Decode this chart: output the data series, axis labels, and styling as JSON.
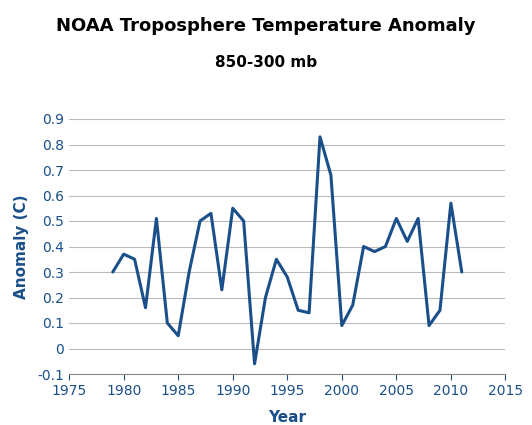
{
  "title": "NOAA Troposphere Temperature Anomaly",
  "subtitle": "850-300 mb",
  "xlabel": "Year",
  "ylabel": "Anomaly (C)",
  "xlim": [
    1975,
    2015
  ],
  "ylim": [
    -0.1,
    0.9
  ],
  "yticks": [
    -0.1,
    0.0,
    0.1,
    0.2,
    0.3,
    0.4,
    0.5,
    0.6,
    0.7,
    0.8,
    0.9
  ],
  "xticks": [
    1975,
    1980,
    1985,
    1990,
    1995,
    2000,
    2005,
    2010,
    2015
  ],
  "line_color": "#1a4f8a",
  "line_width": 2.2,
  "background_color": "#ffffff",
  "grid_color": "#bbbbbb",
  "label_color": "#1a4f8a",
  "tick_color": "#1a4f8a",
  "years": [
    1979,
    1980,
    1981,
    1982,
    1983,
    1984,
    1985,
    1986,
    1987,
    1988,
    1989,
    1990,
    1991,
    1992,
    1993,
    1994,
    1995,
    1996,
    1997,
    1998,
    1999,
    2000,
    2001,
    2002,
    2003,
    2004,
    2005,
    2006,
    2007,
    2008,
    2009,
    2010,
    2011
  ],
  "values": [
    0.3,
    0.37,
    0.35,
    0.16,
    0.51,
    0.1,
    0.05,
    0.3,
    0.5,
    0.53,
    0.23,
    0.55,
    0.5,
    -0.06,
    0.2,
    0.35,
    0.28,
    0.15,
    0.14,
    0.83,
    0.68,
    0.09,
    0.17,
    0.4,
    0.38,
    0.4,
    0.51,
    0.42,
    0.51,
    0.09,
    0.15,
    0.57,
    0.3
  ],
  "title_fontsize": 13,
  "subtitle_fontsize": 11,
  "axis_label_fontsize": 11,
  "tick_fontsize": 10
}
